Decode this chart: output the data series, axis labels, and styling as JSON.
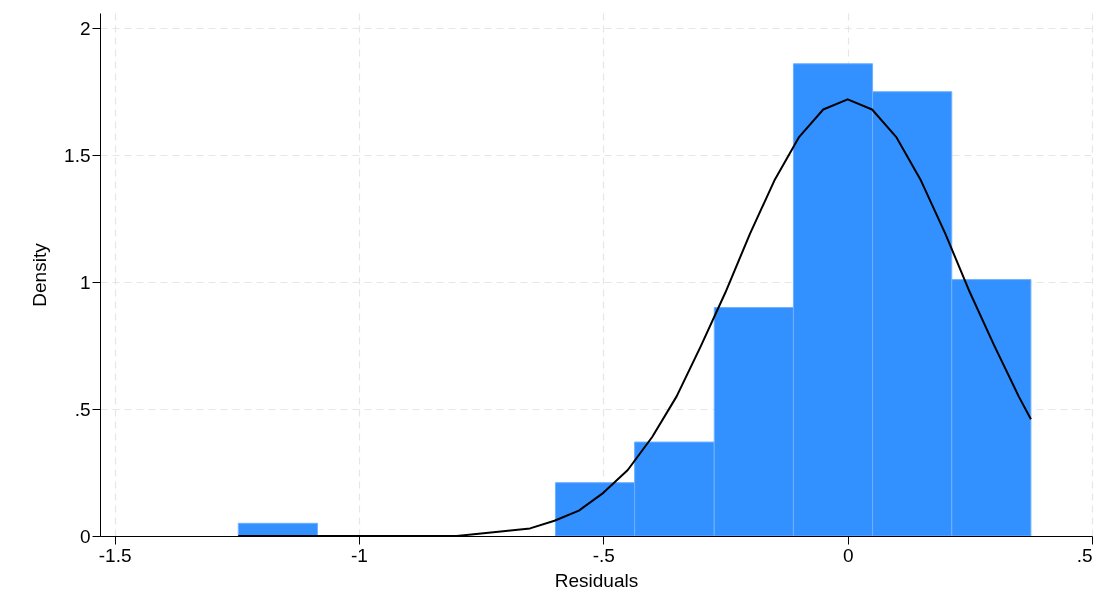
{
  "chart_data": {
    "type": "histogram",
    "xlabel": "Residuals",
    "ylabel": "Density",
    "bins": [
      -1.247,
      -1.085,
      -0.922,
      -0.76,
      -0.598,
      -0.436,
      -0.273,
      -0.111,
      0.051,
      0.213,
      0.375
    ],
    "series": [
      {
        "color": "#3391ff",
        "values": [
          0.05,
          0,
          0,
          0,
          0.21,
          0.37,
          0.9,
          1.86,
          1.75,
          1.01
        ]
      },
      {
        "type": "line",
        "color": "#000000",
        "x": [
          -1.247,
          -1.1,
          -1.0,
          -0.9,
          -0.8,
          -0.75,
          -0.7,
          -0.65,
          -0.6,
          -0.55,
          -0.5,
          -0.45,
          -0.4,
          -0.35,
          -0.3,
          -0.25,
          -0.2,
          -0.15,
          -0.1,
          -0.05,
          0,
          0.05,
          0.1,
          0.15,
          0.2,
          0.25,
          0.3,
          0.35,
          0.375
        ],
        "values": [
          0,
          0,
          0,
          0,
          0,
          0.01,
          0.02,
          0.03,
          0.06,
          0.1,
          0.17,
          0.26,
          0.39,
          0.55,
          0.75,
          0.96,
          1.19,
          1.4,
          1.57,
          1.68,
          1.72,
          1.68,
          1.57,
          1.4,
          1.19,
          0.96,
          0.75,
          0.55,
          0.46
        ]
      }
    ],
    "xlim": [
      -1.53,
      0.5
    ],
    "ylim": [
      0,
      2.06
    ],
    "xticks": [
      -1.5,
      -1,
      {
        "value": -0.5,
        "label": "-.5"
      },
      0,
      {
        "value": 0.5,
        "label": ".5"
      }
    ],
    "yticks": [
      0,
      {
        "value": 0.5,
        "label": ".5"
      },
      1,
      1.5,
      2
    ],
    "grid": true,
    "line_style": "solid"
  }
}
